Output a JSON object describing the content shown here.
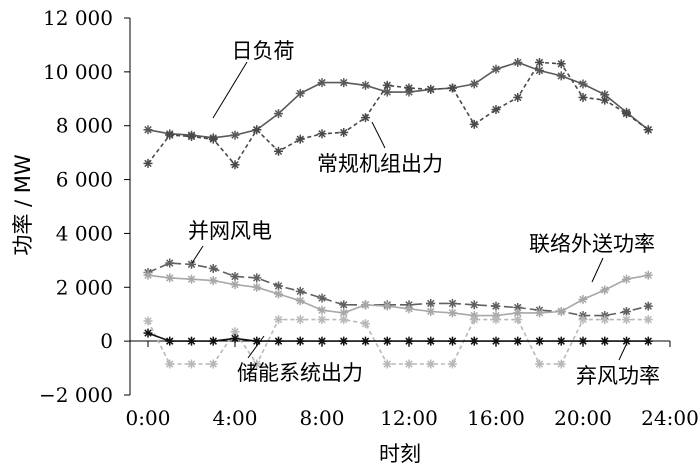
{
  "chart_data": {
    "type": "line",
    "xlabel": "时刻",
    "ylabel": "功率 / MW",
    "xlim": [
      0,
      24
    ],
    "ylim": [
      -2000,
      12000
    ],
    "x_ticks": [
      0,
      4,
      8,
      12,
      16,
      20,
      24
    ],
    "x_tick_labels": [
      "0:00",
      "4:00",
      "8:00",
      "12:00",
      "16:00",
      "20:00",
      "24:00"
    ],
    "y_ticks": [
      -2000,
      0,
      2000,
      4000,
      6000,
      8000,
      10000,
      12000
    ],
    "y_tick_labels": [
      "−2 000",
      "0",
      "2 000",
      "4 000",
      "6 000",
      "8 000",
      "10 000",
      "12 000"
    ],
    "grid": false,
    "x": [
      0,
      1,
      2,
      3,
      4,
      5,
      6,
      7,
      8,
      9,
      10,
      11,
      12,
      13,
      14,
      15,
      16,
      17,
      18,
      19,
      20,
      21,
      22,
      23
    ],
    "series": [
      {
        "name": "日负荷",
        "color": "#5a5a5a",
        "dash": "solid",
        "values": [
          7850,
          7700,
          7650,
          7550,
          7650,
          7850,
          8450,
          9200,
          9600,
          9600,
          9500,
          9250,
          9250,
          9350,
          9400,
          9550,
          10100,
          10350,
          10050,
          9850,
          9550,
          9150,
          8500,
          7850
        ]
      },
      {
        "name": "常规机组出力",
        "color": "#4a4a4a",
        "dash": "dashed",
        "values": [
          6600,
          7650,
          7600,
          7500,
          6550,
          7850,
          7050,
          7500,
          7700,
          7750,
          8300,
          9500,
          9400,
          9350,
          9400,
          8050,
          8600,
          9050,
          10350,
          10300,
          9050,
          8950,
          8450,
          7850
        ]
      },
      {
        "name": "并网风电",
        "color": "#606060",
        "dash": "longdash",
        "values": [
          2550,
          2900,
          2850,
          2700,
          2400,
          2350,
          2050,
          1850,
          1600,
          1350,
          1350,
          1350,
          1350,
          1400,
          1400,
          1350,
          1300,
          1250,
          1150,
          1100,
          950,
          950,
          1100,
          1300
        ]
      },
      {
        "name": "联络外送功率",
        "color": "#a8a8a8",
        "dash": "solid",
        "values": [
          2450,
          2350,
          2300,
          2250,
          2100,
          2000,
          1750,
          1500,
          1150,
          1050,
          1350,
          1300,
          1200,
          1100,
          1050,
          950,
          950,
          1050,
          1050,
          1100,
          1550,
          1900,
          2300,
          2450
        ]
      },
      {
        "name": "储能系统出力",
        "color": "#b8b8b8",
        "dash": "dashed",
        "values": [
          750,
          -850,
          -850,
          -850,
          350,
          -850,
          800,
          800,
          800,
          800,
          650,
          -850,
          -850,
          -850,
          -850,
          800,
          800,
          800,
          -850,
          -850,
          800,
          800,
          800,
          800
        ]
      },
      {
        "name": "弃风功率",
        "color": "#111111",
        "dash": "solid",
        "values": [
          300,
          0,
          0,
          0,
          100,
          0,
          0,
          0,
          0,
          0,
          0,
          0,
          0,
          0,
          0,
          0,
          0,
          0,
          0,
          0,
          0,
          0,
          0,
          0
        ]
      }
    ],
    "annotations": [
      {
        "text": "日负荷"
      },
      {
        "text": "常规机组出力"
      },
      {
        "text": "并网风电"
      },
      {
        "text": "联络外送功率"
      },
      {
        "text": "储能系统出力"
      },
      {
        "text": "弃风功率"
      }
    ]
  }
}
